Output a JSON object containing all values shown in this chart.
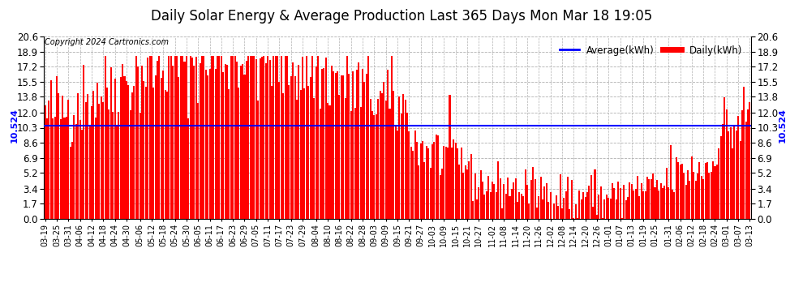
{
  "title": "Daily Solar Energy & Average Production Last 365 Days Mon Mar 18 19:05",
  "average_value": 10.524,
  "ylim": [
    0.0,
    20.6
  ],
  "yticks": [
    0.0,
    1.7,
    3.4,
    5.2,
    6.9,
    8.6,
    10.3,
    12.0,
    13.8,
    15.5,
    17.2,
    18.9,
    20.6
  ],
  "bar_color": "#ff0000",
  "avg_line_color": "#0000ff",
  "background_color": "#ffffff",
  "grid_color": "#b0b0b0",
  "title_fontsize": 12,
  "copyright_text": "Copyright 2024 Cartronics.com",
  "legend_avg": "Average(kWh)",
  "legend_daily": "Daily(kWh)",
  "avg_label": "10.524",
  "x_labels": [
    "03-19",
    "03-25",
    "03-31",
    "04-06",
    "04-12",
    "04-18",
    "04-24",
    "04-30",
    "05-06",
    "05-12",
    "05-18",
    "05-24",
    "05-30",
    "06-05",
    "06-11",
    "06-17",
    "06-23",
    "06-29",
    "07-05",
    "07-11",
    "07-17",
    "07-23",
    "07-29",
    "08-04",
    "08-10",
    "08-16",
    "08-22",
    "08-28",
    "09-03",
    "09-09",
    "09-15",
    "09-21",
    "09-27",
    "10-03",
    "10-09",
    "10-15",
    "10-21",
    "10-27",
    "11-02",
    "11-08",
    "11-14",
    "11-20",
    "11-26",
    "12-02",
    "12-08",
    "12-14",
    "12-20",
    "12-26",
    "01-01",
    "01-07",
    "01-13",
    "01-19",
    "01-25",
    "01-31",
    "02-06",
    "02-12",
    "02-18",
    "02-24",
    "03-01",
    "03-07",
    "03-13"
  ],
  "seed": 42,
  "n_days": 365
}
